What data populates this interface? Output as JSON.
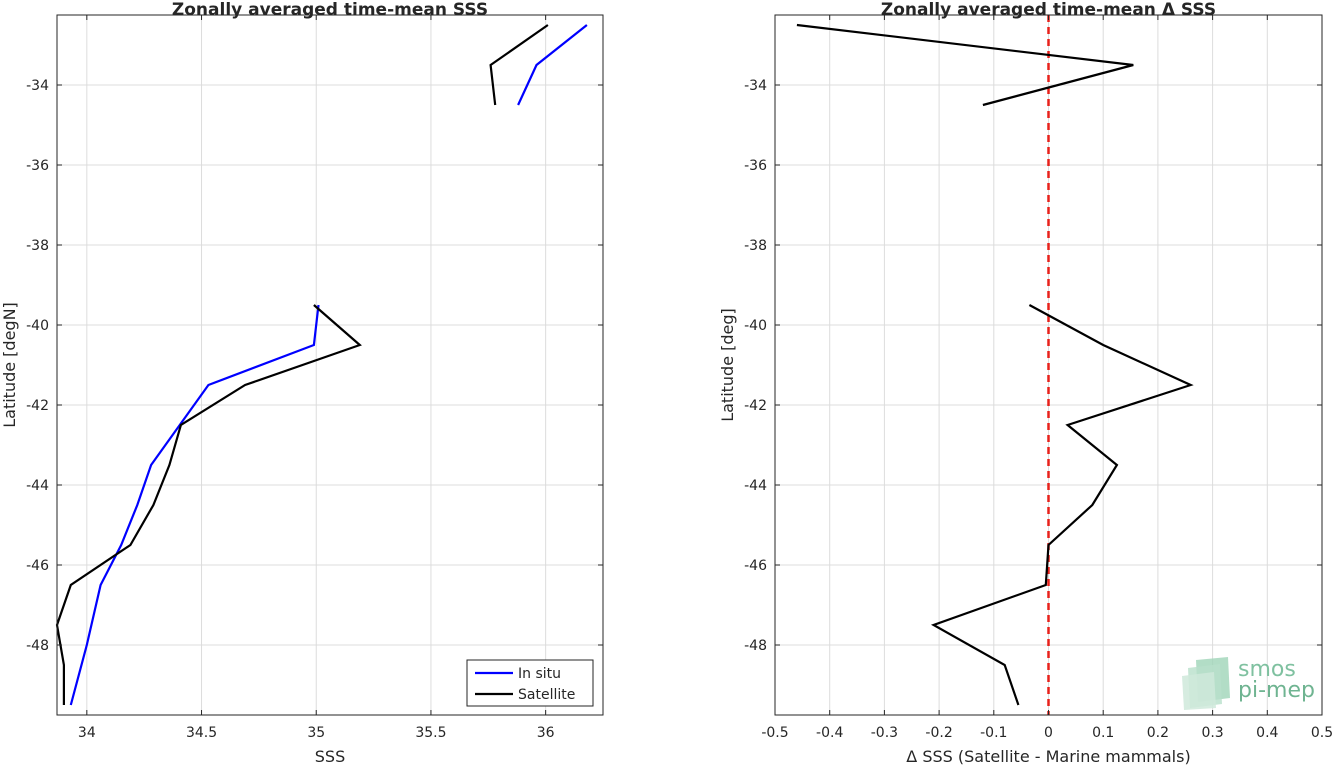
{
  "chart_data": [
    {
      "type": "line",
      "title": "Zonally averaged time-mean SSS",
      "xlabel": "SSS",
      "ylabel": "Latitude [degN]",
      "xlim": [
        33.87,
        36.25
      ],
      "ylim": [
        -49.75,
        -32.25
      ],
      "xticks": [
        34,
        34.5,
        35,
        35.5,
        36
      ],
      "xticklabels": [
        "34",
        "34.5",
        "35",
        "35.5",
        "36"
      ],
      "yticks": [
        -34,
        -36,
        -38,
        -40,
        -42,
        -44,
        -46,
        -48
      ],
      "yticklabels": [
        "-34",
        "-36",
        "-38",
        "-40",
        "-42",
        "-44",
        "-46",
        "-48"
      ],
      "grid": true,
      "legend_position": "bottom-right",
      "series": [
        {
          "name": "In situ",
          "color": "#0000ff",
          "segments": [
            {
              "x": [
                36.18,
                35.96,
                35.88
              ],
              "y": [
                -32.5,
                -33.5,
                -34.5
              ]
            },
            {
              "x": [
                35.01,
                34.99,
                34.53,
                34.28,
                34.22,
                34.15,
                34.06,
                34.0,
                33.93
              ],
              "y": [
                -39.5,
                -40.5,
                -41.5,
                -43.5,
                -44.5,
                -45.5,
                -46.5,
                -48.0,
                -49.5
              ]
            }
          ]
        },
        {
          "name": "Satellite",
          "color": "#000000",
          "segments": [
            {
              "x": [
                36.01,
                35.76,
                35.78
              ],
              "y": [
                -32.5,
                -33.5,
                -34.5
              ]
            },
            {
              "x": [
                34.99,
                35.19,
                34.69,
                34.41,
                34.36,
                34.29,
                34.19,
                33.93,
                33.87,
                33.9,
                33.9
              ],
              "y": [
                -39.5,
                -40.5,
                -41.5,
                -42.5,
                -43.5,
                -44.5,
                -45.5,
                -46.5,
                -47.5,
                -48.5,
                -49.5
              ]
            }
          ]
        }
      ]
    },
    {
      "type": "line",
      "title": "Zonally averaged time-mean Δ SSS",
      "xlabel": "Δ SSS (Satellite - Marine mammals)",
      "ylabel": "Latitude [deg]",
      "xlim": [
        -0.5,
        0.5
      ],
      "ylim": [
        -49.75,
        -32.25
      ],
      "xticks": [
        -0.5,
        -0.4,
        -0.3,
        -0.2,
        -0.1,
        0,
        0.1,
        0.2,
        0.3,
        0.4,
        0.5
      ],
      "xticklabels": [
        "-0.5",
        "-0.4",
        "-0.3",
        "-0.2",
        "-0.1",
        "0",
        "0.1",
        "0.2",
        "0.3",
        "0.4",
        "0.5"
      ],
      "yticks": [
        -34,
        -36,
        -38,
        -40,
        -42,
        -44,
        -46,
        -48
      ],
      "yticklabels": [
        "-34",
        "-36",
        "-38",
        "-40",
        "-42",
        "-44",
        "-46",
        "-48"
      ],
      "grid": true,
      "reference_line": {
        "x": 0,
        "color": "#e8201a",
        "style": "dashed"
      },
      "series": [
        {
          "color": "#000000",
          "segments": [
            {
              "x": [
                -0.46,
                0.155,
                -0.12
              ],
              "y": [
                -32.5,
                -33.5,
                -34.5
              ]
            },
            {
              "x": [
                -0.035,
                0.1,
                0.26,
                0.035,
                0.125,
                0.08,
                0.0,
                -0.005,
                -0.21,
                -0.08,
                -0.055
              ],
              "y": [
                -39.5,
                -40.5,
                -41.5,
                -42.5,
                -43.5,
                -44.5,
                -45.5,
                -46.5,
                -47.5,
                -48.5,
                -49.5
              ]
            }
          ]
        }
      ]
    }
  ],
  "logo": {
    "line1": "smos",
    "line2": "pi-mep"
  }
}
